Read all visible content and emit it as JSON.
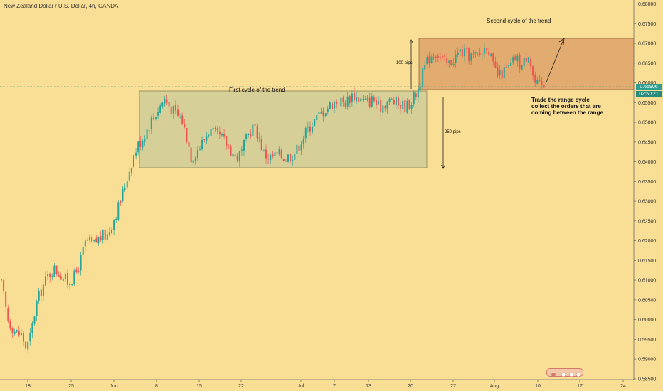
{
  "title": "New Zealand Dollar / U.S. Dollar, 4h, OANDA",
  "annotations": {
    "second_cycle": "Second cycle of the trend",
    "first_cycle": "First cycle of the trend",
    "pips100": "100 pips",
    "pips250": "250 pips",
    "trade_range": "Trade the range cycle\ncollect the orders that are\ncoming between the range"
  },
  "price_tags": {
    "last": "0.65906",
    "countdown": "02:50:21"
  },
  "colors": {
    "background": "#f9de95",
    "up": "#26a69a",
    "down": "#ef5350",
    "box1": "#d6cf98",
    "box2": "#e2ab6f",
    "price_line": "#5fa89a"
  },
  "chart_data": {
    "type": "candlestick",
    "ylim": [
      0.5848,
      0.681
    ],
    "y_ticks": [
      "0.68000",
      "0.67500",
      "0.67000",
      "0.66500",
      "0.66000",
      "0.65500",
      "0.65000",
      "0.64500",
      "0.64000",
      "0.63500",
      "0.63000",
      "0.62500",
      "0.62000",
      "0.61500",
      "0.61000",
      "0.60500",
      "0.60000",
      "0.59500",
      "0.59000",
      "0.58500"
    ],
    "x_ticks": [
      "18",
      "25",
      "Jun",
      "8",
      "15",
      "22",
      "Jul",
      "7",
      "13",
      "20",
      "27",
      "Aug",
      "10",
      "17",
      "24"
    ],
    "path": [
      [
        0,
        0.61
      ],
      [
        10,
        0.6
      ],
      [
        20,
        0.597
      ],
      [
        30,
        0.596
      ],
      [
        36,
        0.5925
      ],
      [
        42,
        0.596
      ],
      [
        50,
        0.604
      ],
      [
        58,
        0.608
      ],
      [
        66,
        0.611
      ],
      [
        74,
        0.613
      ],
      [
        84,
        0.6115
      ],
      [
        94,
        0.6095
      ],
      [
        104,
        0.611
      ],
      [
        112,
        0.615
      ],
      [
        120,
        0.62
      ],
      [
        130,
        0.619
      ],
      [
        140,
        0.621
      ],
      [
        150,
        0.6215
      ],
      [
        160,
        0.626
      ],
      [
        168,
        0.63
      ],
      [
        176,
        0.635
      ],
      [
        184,
        0.64
      ],
      [
        192,
        0.644
      ],
      [
        200,
        0.646
      ],
      [
        210,
        0.65
      ],
      [
        220,
        0.653
      ],
      [
        230,
        0.656
      ],
      [
        238,
        0.654
      ],
      [
        246,
        0.652
      ],
      [
        254,
        0.651
      ],
      [
        262,
        0.646
      ],
      [
        268,
        0.641
      ],
      [
        276,
        0.643
      ],
      [
        284,
        0.645
      ],
      [
        292,
        0.648
      ],
      [
        300,
        0.647
      ],
      [
        310,
        0.646
      ],
      [
        320,
        0.644
      ],
      [
        330,
        0.641
      ],
      [
        338,
        0.642
      ],
      [
        346,
        0.646
      ],
      [
        354,
        0.649
      ],
      [
        362,
        0.647
      ],
      [
        370,
        0.642
      ],
      [
        380,
        0.641
      ],
      [
        390,
        0.642
      ],
      [
        400,
        0.641
      ],
      [
        410,
        0.642
      ],
      [
        416,
        0.643
      ],
      [
        424,
        0.646
      ],
      [
        434,
        0.649
      ],
      [
        444,
        0.651
      ],
      [
        454,
        0.653
      ],
      [
        464,
        0.6545
      ],
      [
        474,
        0.6555
      ],
      [
        484,
        0.655
      ],
      [
        494,
        0.657
      ],
      [
        504,
        0.656
      ],
      [
        514,
        0.655
      ],
      [
        524,
        0.656
      ],
      [
        532,
        0.6535
      ],
      [
        540,
        0.655
      ],
      [
        550,
        0.6555
      ],
      [
        560,
        0.6545
      ],
      [
        570,
        0.654
      ],
      [
        580,
        0.656
      ],
      [
        588,
        0.659
      ],
      [
        596,
        0.664
      ],
      [
        604,
        0.667
      ],
      [
        612,
        0.668
      ],
      [
        620,
        0.666
      ],
      [
        628,
        0.6645
      ],
      [
        636,
        0.666
      ],
      [
        646,
        0.668
      ],
      [
        656,
        0.667
      ],
      [
        666,
        0.6665
      ],
      [
        676,
        0.6675
      ],
      [
        684,
        0.67
      ],
      [
        692,
        0.664
      ],
      [
        700,
        0.6615
      ],
      [
        708,
        0.663
      ],
      [
        716,
        0.664
      ],
      [
        724,
        0.6665
      ],
      [
        732,
        0.664
      ],
      [
        742,
        0.668
      ],
      [
        750,
        0.66
      ],
      [
        758,
        0.659
      ],
      [
        764,
        0.659
      ]
    ]
  }
}
